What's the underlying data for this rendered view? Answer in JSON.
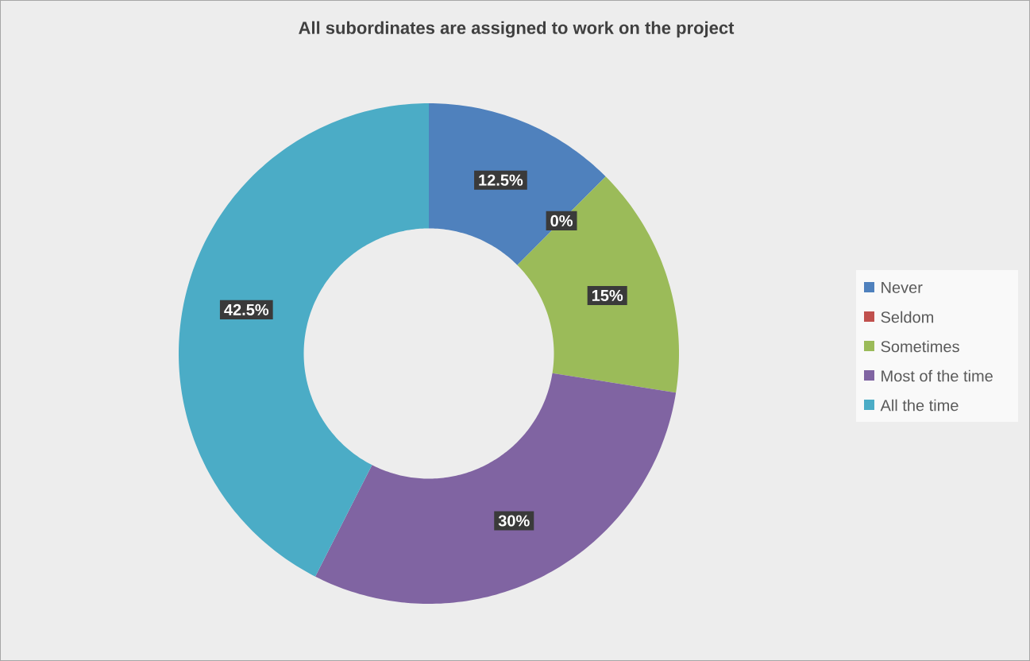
{
  "chart_data": {
    "type": "donut",
    "title": "All subordinates are assigned to work on the project",
    "categories": [
      "Never",
      "Seldom",
      "Sometimes",
      "Most of the time",
      "All the time"
    ],
    "values": [
      12.5,
      0,
      15,
      30,
      42.5
    ],
    "value_labels": [
      "12.5%",
      "0%",
      "15%",
      "30%",
      "42.5%"
    ],
    "colors": [
      "#4f81bd",
      "#c0504d",
      "#9bbb59",
      "#8064a2",
      "#4bacc6"
    ],
    "legend": "right"
  }
}
